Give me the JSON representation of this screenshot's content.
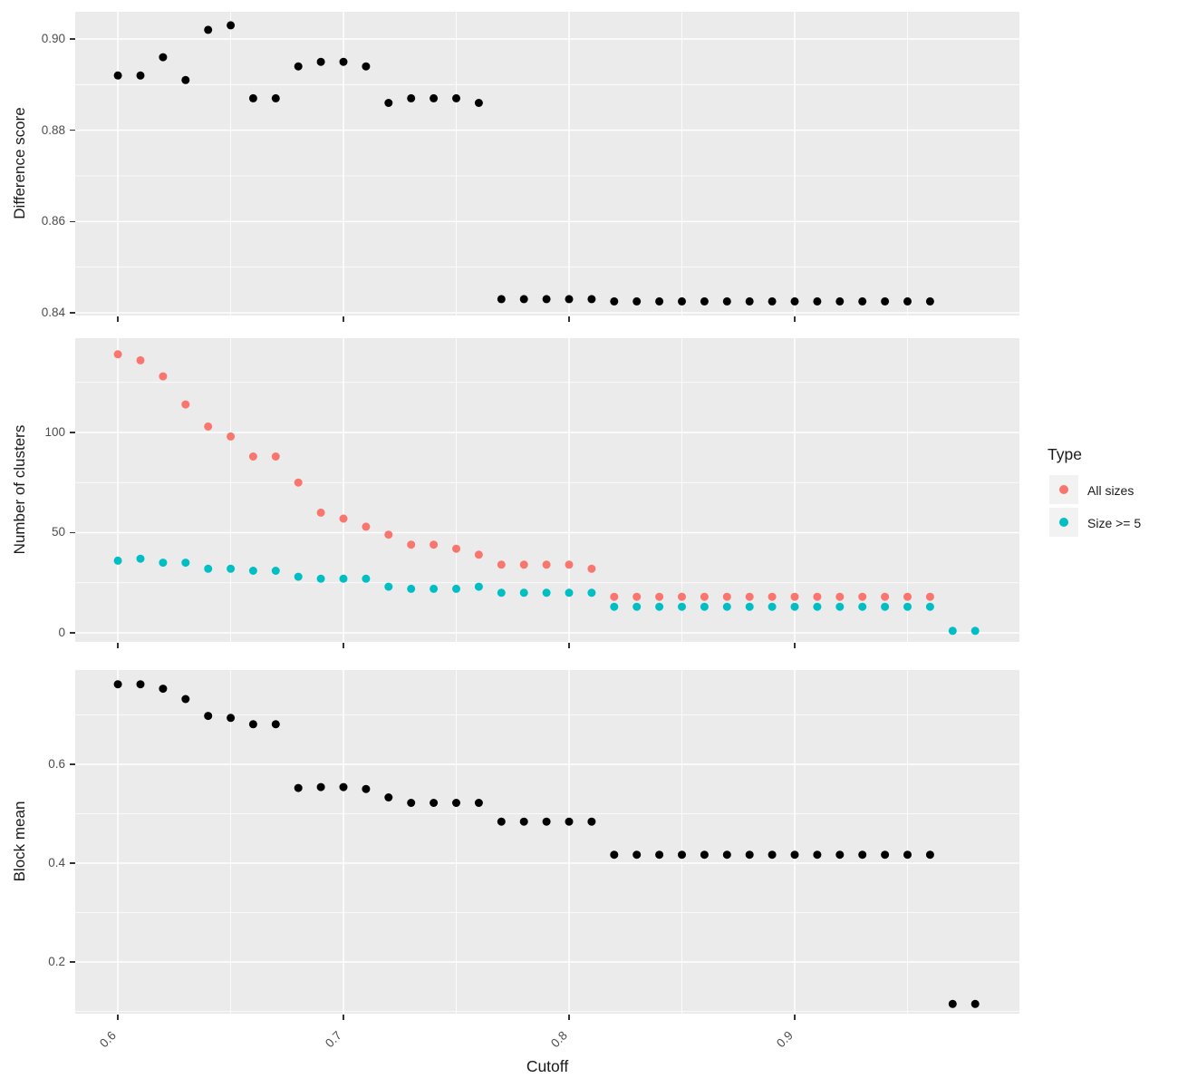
{
  "axes": {
    "x": {
      "title": "Cutoff",
      "lim": [
        0.5811,
        0.9996
      ],
      "ticks": [
        0.6,
        0.7,
        0.8,
        0.9
      ],
      "labels": [
        "0.6",
        "0.7",
        "0.8",
        "0.9"
      ],
      "minor": [
        0.65,
        0.75,
        0.85,
        0.95
      ]
    }
  },
  "chart_data": [
    {
      "type": "scatter",
      "name": "difference-score",
      "ylabel": "Difference score",
      "ylim": [
        0.8394,
        0.90596
      ],
      "yticks": [
        0.84,
        0.86,
        0.88,
        0.9
      ],
      "ytick_labels": [
        "0.84",
        "0.86",
        "0.88",
        "0.90"
      ],
      "yminor": [
        0.85,
        0.87,
        0.89
      ],
      "grid": true,
      "series": [
        {
          "name": "Difference score",
          "color": "#000000",
          "x": [
            0.6,
            0.61,
            0.62,
            0.63,
            0.64,
            0.65,
            0.66,
            0.67,
            0.68,
            0.69,
            0.7,
            0.71,
            0.72,
            0.73,
            0.74,
            0.75,
            0.76,
            0.77,
            0.78,
            0.79,
            0.8,
            0.81,
            0.82,
            0.83,
            0.84,
            0.85,
            0.86,
            0.87,
            0.88,
            0.89,
            0.9,
            0.91,
            0.92,
            0.93,
            0.94,
            0.95,
            0.96
          ],
          "y": [
            0.892,
            0.892,
            0.896,
            0.891,
            0.902,
            0.903,
            0.887,
            0.887,
            0.894,
            0.895,
            0.895,
            0.894,
            0.886,
            0.887,
            0.887,
            0.887,
            0.886,
            0.843,
            0.843,
            0.843,
            0.843,
            0.843,
            0.8425,
            0.8425,
            0.8425,
            0.8425,
            0.8425,
            0.8425,
            0.8425,
            0.8425,
            0.8425,
            0.8425,
            0.8425,
            0.8425,
            0.8425,
            0.8425,
            0.8425
          ]
        }
      ]
    },
    {
      "type": "scatter",
      "name": "number-of-clusters",
      "ylabel": "Number of clusters",
      "ylim": [
        -4.54,
        147.06
      ],
      "yticks": [
        0,
        50,
        100
      ],
      "ytick_labels": [
        "0",
        "50",
        "100"
      ],
      "yminor": [
        25,
        75,
        125
      ],
      "grid": true,
      "series": [
        {
          "name": "All sizes",
          "color": "#F8766D",
          "x": [
            0.6,
            0.61,
            0.62,
            0.63,
            0.64,
            0.65,
            0.66,
            0.67,
            0.68,
            0.69,
            0.7,
            0.71,
            0.72,
            0.73,
            0.74,
            0.75,
            0.76,
            0.77,
            0.78,
            0.79,
            0.8,
            0.81,
            0.82,
            0.83,
            0.84,
            0.85,
            0.86,
            0.87,
            0.88,
            0.89,
            0.9,
            0.91,
            0.92,
            0.93,
            0.94,
            0.95,
            0.96
          ],
          "y": [
            139,
            136,
            128,
            114,
            103,
            98,
            88,
            88,
            75,
            60,
            57,
            53,
            49,
            44,
            44,
            42,
            39,
            34,
            34,
            34,
            34,
            32,
            18,
            18,
            18,
            18,
            18,
            18,
            18,
            18,
            18,
            18,
            18,
            18,
            18,
            18,
            18
          ]
        },
        {
          "name": "Size >= 5",
          "color": "#00BFC4",
          "x": [
            0.6,
            0.61,
            0.62,
            0.63,
            0.64,
            0.65,
            0.66,
            0.67,
            0.68,
            0.69,
            0.7,
            0.71,
            0.72,
            0.73,
            0.74,
            0.75,
            0.76,
            0.77,
            0.78,
            0.79,
            0.8,
            0.81,
            0.82,
            0.83,
            0.84,
            0.85,
            0.86,
            0.87,
            0.88,
            0.89,
            0.9,
            0.91,
            0.92,
            0.93,
            0.94,
            0.95,
            0.96,
            0.97,
            0.98
          ],
          "y": [
            36,
            37,
            35,
            35,
            32,
            32,
            31,
            31,
            28,
            27,
            27,
            27,
            23,
            22,
            22,
            22,
            23,
            20,
            20,
            20,
            20,
            20,
            13,
            13,
            13,
            13,
            13,
            13,
            13,
            13,
            13,
            13,
            13,
            13,
            13,
            13,
            13,
            1,
            1
          ]
        }
      ]
    },
    {
      "type": "scatter",
      "name": "block-mean",
      "ylabel": "Block mean",
      "ylim": [
        0.0954,
        0.7908
      ],
      "yticks": [
        0.2,
        0.4,
        0.6
      ],
      "ytick_labels": [
        "0.2",
        "0.4",
        "0.6"
      ],
      "yminor": [
        0.1,
        0.3,
        0.5,
        0.7
      ],
      "grid": true,
      "series": [
        {
          "name": "Block mean",
          "color": "#000000",
          "x": [
            0.6,
            0.61,
            0.62,
            0.63,
            0.64,
            0.65,
            0.66,
            0.67,
            0.68,
            0.69,
            0.7,
            0.71,
            0.72,
            0.73,
            0.74,
            0.75,
            0.76,
            0.77,
            0.78,
            0.79,
            0.8,
            0.81,
            0.82,
            0.83,
            0.84,
            0.85,
            0.86,
            0.87,
            0.88,
            0.89,
            0.9,
            0.91,
            0.92,
            0.93,
            0.94,
            0.95,
            0.96,
            0.97,
            0.98
          ],
          "y": [
            0.762,
            0.762,
            0.753,
            0.732,
            0.698,
            0.694,
            0.681,
            0.681,
            0.552,
            0.554,
            0.554,
            0.55,
            0.533,
            0.522,
            0.522,
            0.522,
            0.522,
            0.484,
            0.484,
            0.484,
            0.484,
            0.484,
            0.417,
            0.417,
            0.417,
            0.417,
            0.417,
            0.417,
            0.417,
            0.417,
            0.417,
            0.417,
            0.417,
            0.417,
            0.417,
            0.417,
            0.417,
            0.115,
            0.115
          ]
        }
      ]
    }
  ],
  "legend": {
    "title": "Type",
    "entries": [
      {
        "label": "All sizes",
        "color": "#F8766D"
      },
      {
        "label": "Size >= 5",
        "color": "#00BFC4"
      }
    ]
  },
  "style": {
    "panel_background": "#EBEBEB",
    "grid_color": "#FFFFFF",
    "legend_key_background": "#F2F2F2",
    "tick_color": "#333333"
  }
}
